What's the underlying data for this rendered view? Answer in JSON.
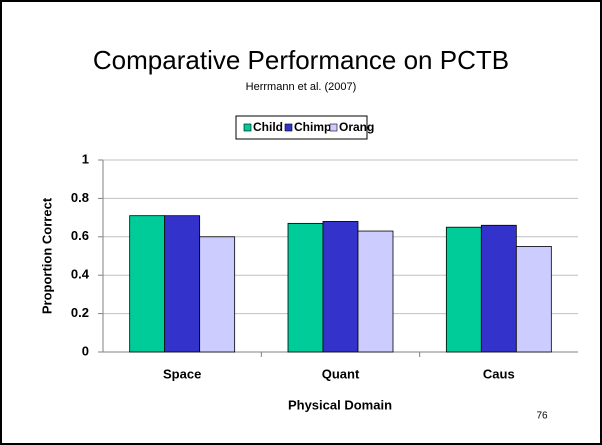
{
  "chart_data": {
    "type": "bar",
    "title": "Comparative Performance on PCTB",
    "subtitle": "Herrmann et al. (2007)",
    "x_label": "Physical Domain",
    "y_label": "Proportion Correct",
    "categories": [
      "Space",
      "Quant",
      "Caus"
    ],
    "series": [
      {
        "name": "Child",
        "color": "#00cc99",
        "values": [
          0.71,
          0.67,
          0.65
        ]
      },
      {
        "name": "Chimp",
        "color": "#3333cc",
        "values": [
          0.71,
          0.68,
          0.66
        ]
      },
      {
        "name": "Orang",
        "color": "#ccccff",
        "values": [
          0.6,
          0.63,
          0.55
        ]
      }
    ],
    "ylim": [
      0,
      1
    ],
    "yticks": [
      0,
      0.2,
      0.4,
      0.6,
      0.8,
      1
    ],
    "grid": true,
    "legend": "top"
  },
  "page_number": "76"
}
